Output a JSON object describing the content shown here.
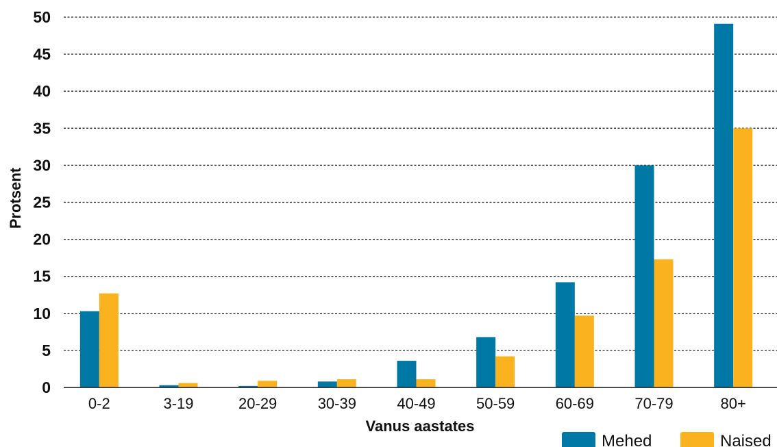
{
  "chart_data": {
    "type": "bar",
    "title": "",
    "xlabel": "Vanus aastates",
    "ylabel": "Protsent",
    "ylim": [
      0,
      50
    ],
    "yticks": [
      0,
      5,
      10,
      15,
      20,
      25,
      30,
      35,
      40,
      45,
      50
    ],
    "grid": "horizontal dotted",
    "legend_position": "bottom-right",
    "categories": [
      "0-2",
      "3-19",
      "20-29",
      "30-39",
      "40-49",
      "50-59",
      "60-69",
      "70-79",
      "80+"
    ],
    "series": [
      {
        "name": "Mehed",
        "color": "#0078a6",
        "values": [
          10.3,
          0.3,
          0.2,
          0.8,
          3.6,
          6.8,
          14.2,
          30.0,
          49.1
        ]
      },
      {
        "name": "Naised",
        "color": "#fbb21f",
        "values": [
          12.7,
          0.6,
          0.9,
          1.1,
          1.1,
          4.2,
          9.7,
          17.3,
          35.0
        ]
      }
    ]
  }
}
